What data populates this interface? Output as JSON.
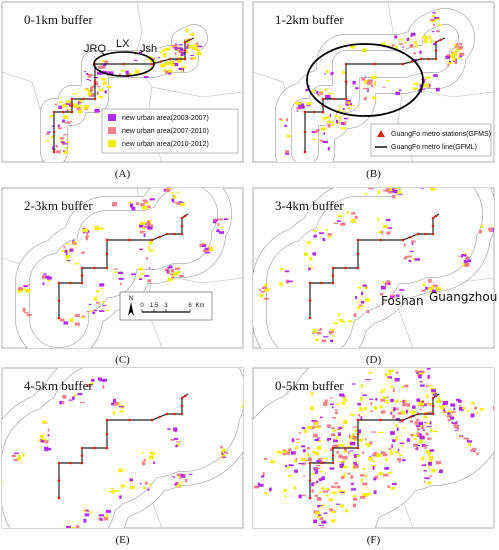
{
  "panels": [
    {
      "title": "0-1km buffer",
      "caption": "(A)"
    },
    {
      "title": "1-2km buffer",
      "caption": "(B)"
    },
    {
      "title": "2-3km buffer",
      "caption": "(C)"
    },
    {
      "title": "3-4km buffer",
      "caption": "(D)"
    },
    {
      "title": "4-5km buffer",
      "caption": "(E)"
    },
    {
      "title": "0-5km buffer",
      "caption": "(F)"
    }
  ],
  "labels": {
    "jrq": "JRQ",
    "lx": "LX",
    "jsh": "Jsh",
    "foshan": "Foshan",
    "guangzhou": "Guangzhou"
  },
  "legend_urban": [
    "new urban area(2003-2007)",
    "new urban area(2007-2010)",
    "new urban area(2010-2012)"
  ],
  "legend_metro": [
    "GuangFo metro stations(GFMS)",
    "GuangFo metro line(GFML)"
  ],
  "scale": {
    "north": "N",
    "ticks": [
      "0",
      "1.5",
      "3",
      "6"
    ],
    "unit": "Km"
  }
}
